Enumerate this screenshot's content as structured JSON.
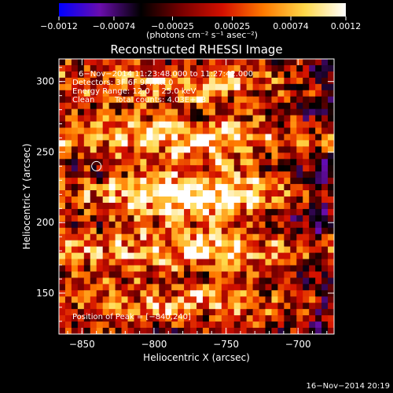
{
  "chart_data": {
    "type": "heatmap",
    "title": "Reconstructed RHESSI Image",
    "xlabel": "Heliocentric X (arcsec)",
    "ylabel": "Heliocentric Y (arcsec)",
    "xlim": [
      -866,
      -675
    ],
    "ylim": [
      121,
      316
    ],
    "x_ticks": [
      -850,
      -800,
      -750,
      -700
    ],
    "y_ticks": [
      150,
      200,
      250,
      300
    ],
    "x_tick_labels": [
      "−850",
      "−800",
      "−750",
      "−700"
    ],
    "y_tick_labels": [
      "150",
      "200",
      "250",
      "300"
    ],
    "colorbar": {
      "range": [
        -0.0012,
        0.0012
      ],
      "ticks": [
        -0.0012,
        -0.00074,
        -0.00025,
        0.00025,
        0.00074,
        0.0012
      ],
      "tick_labels": [
        "−0.0012",
        "−0.00074",
        "−0.00025",
        "0.00025",
        "0.00074",
        "0.0012"
      ],
      "units": "(photons cm⁻² s⁻¹ asec⁻²)",
      "colors": [
        "#0000ff",
        "#6a0dad",
        "#000000",
        "#7a0000",
        "#d41000",
        "#ff7a00",
        "#ffd84a",
        "#ffffff"
      ]
    },
    "annotations": {
      "time": "6−Nov−2014 11:23:48.000 to 11:27:42.000",
      "detectors": "Detectors: 3F 6F 9F, Att 0",
      "energy": "Energy Range: 12.0 − 25.0 keV",
      "clean": "Clean",
      "counts": "Total counts: 4.03E+03",
      "peak": "Position of Peak = [−840,240]"
    },
    "peak": {
      "x": -840,
      "y": 240
    },
    "grid": false
  },
  "footer": {
    "timestamp": "16−Nov−2014 20:19"
  }
}
